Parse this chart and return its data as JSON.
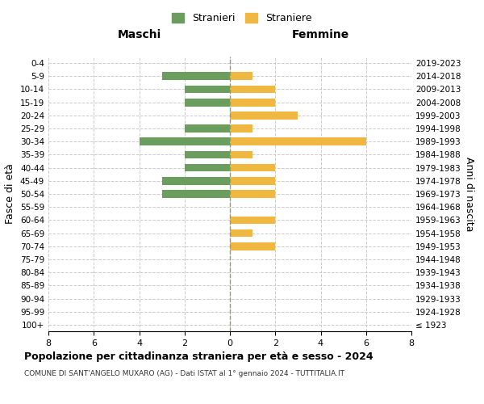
{
  "age_groups": [
    "100+",
    "95-99",
    "90-94",
    "85-89",
    "80-84",
    "75-79",
    "70-74",
    "65-69",
    "60-64",
    "55-59",
    "50-54",
    "45-49",
    "40-44",
    "35-39",
    "30-34",
    "25-29",
    "20-24",
    "15-19",
    "10-14",
    "5-9",
    "0-4"
  ],
  "birth_years": [
    "≤ 1923",
    "1924-1928",
    "1929-1933",
    "1934-1938",
    "1939-1943",
    "1944-1948",
    "1949-1953",
    "1954-1958",
    "1959-1963",
    "1964-1968",
    "1969-1973",
    "1974-1978",
    "1979-1983",
    "1984-1988",
    "1989-1993",
    "1994-1998",
    "1999-2003",
    "2004-2008",
    "2009-2013",
    "2014-2018",
    "2019-2023"
  ],
  "maschi": [
    0,
    0,
    0,
    0,
    0,
    0,
    0,
    0,
    0,
    0,
    3,
    3,
    2,
    2,
    4,
    2,
    0,
    2,
    2,
    3,
    0
  ],
  "femmine": [
    0,
    0,
    0,
    0,
    0,
    0,
    2,
    1,
    2,
    0,
    2,
    2,
    2,
    1,
    6,
    1,
    3,
    2,
    2,
    1,
    0
  ],
  "color_maschi": "#6b9e5e",
  "color_femmine": "#f0b840",
  "title": "Popolazione per cittadinanza straniera per età e sesso - 2024",
  "subtitle": "COMUNE DI SANT'ANGELO MUXARO (AG) - Dati ISTAT al 1° gennaio 2024 - TUTTITALIA.IT",
  "xlabel_left": "Maschi",
  "xlabel_right": "Femmine",
  "ylabel_left": "Fasce di età",
  "ylabel_right": "Anni di nascita",
  "legend_stranieri": "Stranieri",
  "legend_straniere": "Straniere",
  "xlim": 8,
  "background_color": "#ffffff",
  "grid_color": "#cccccc"
}
